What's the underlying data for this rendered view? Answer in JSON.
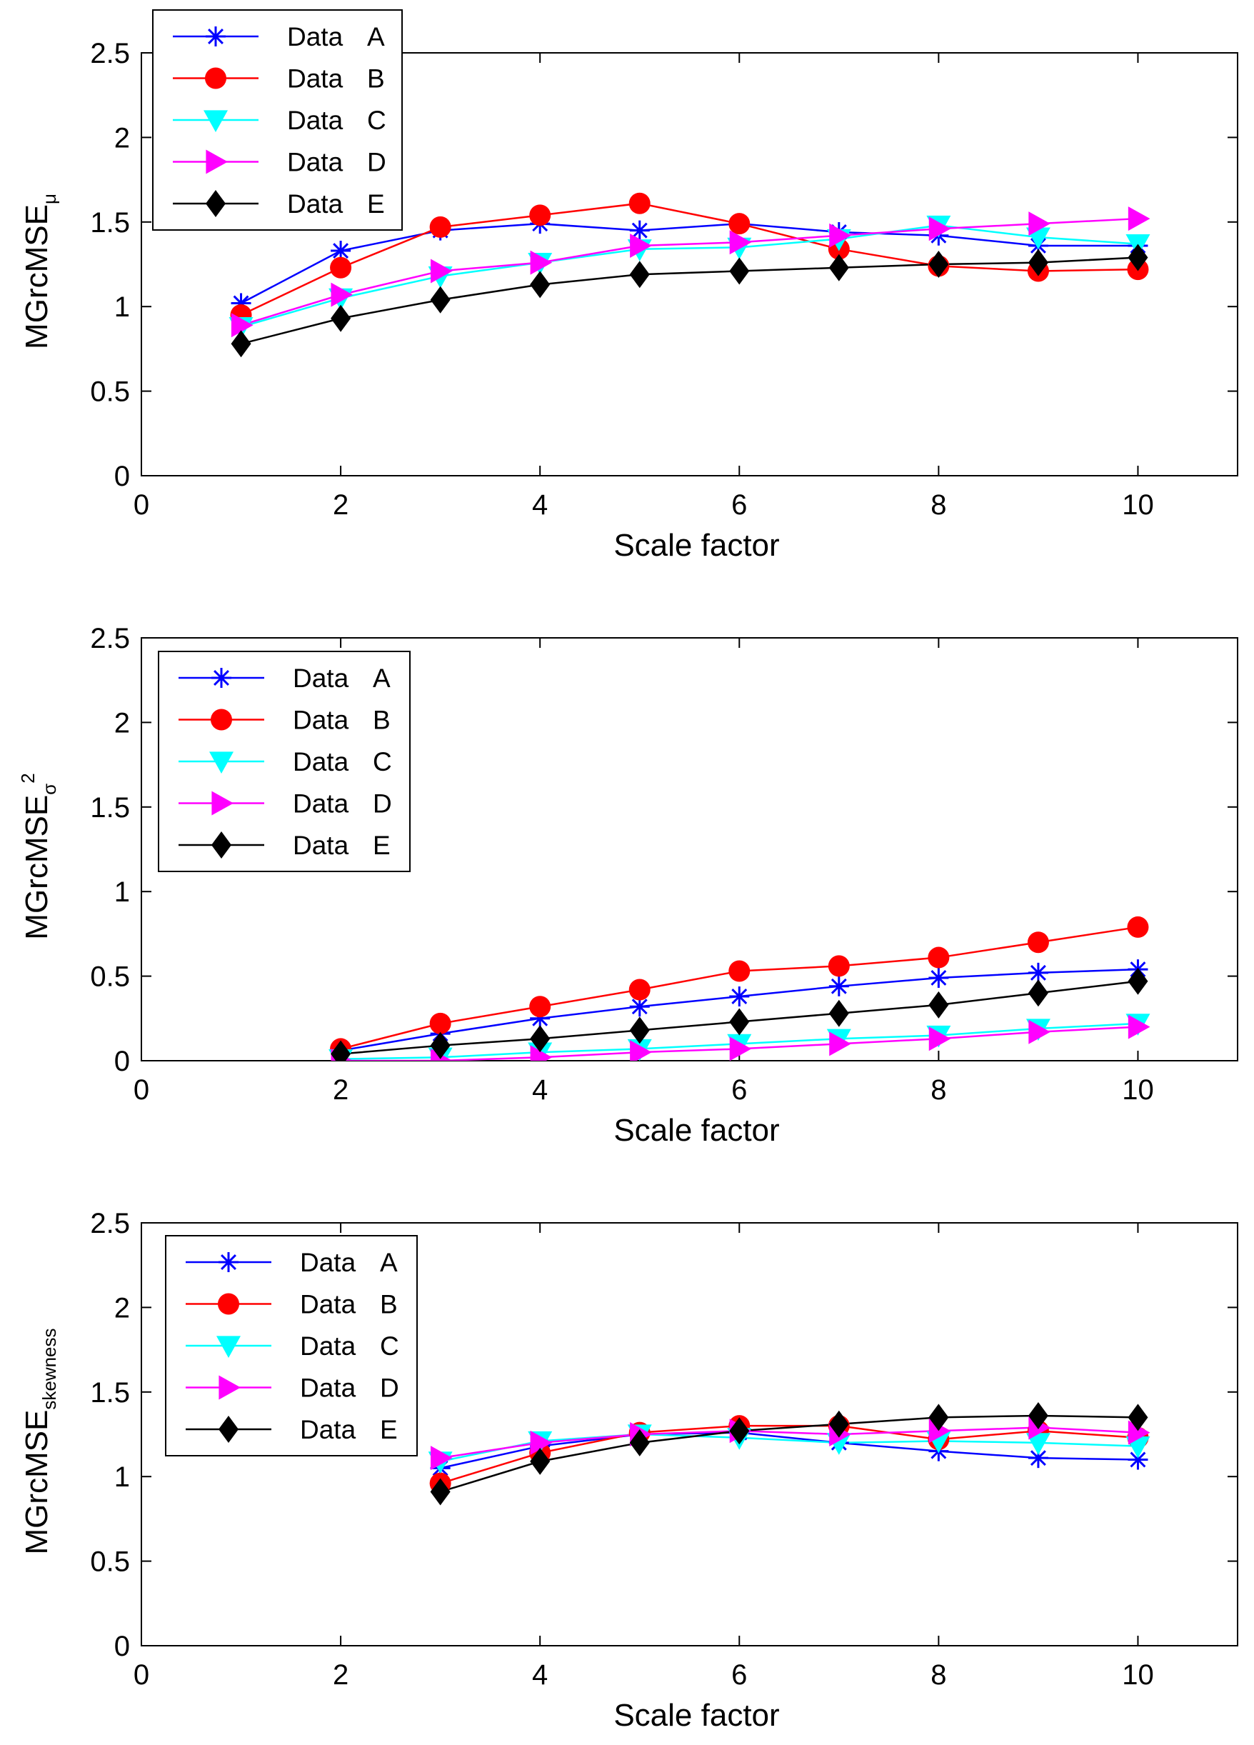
{
  "chart_data": [
    {
      "type": "line",
      "ylabel": "MGrcMSE",
      "ylabel_subscript": "μ",
      "ylabel_superscript": "",
      "xlabel": "Scale factor",
      "xlim": [
        0,
        11
      ],
      "ylim": [
        0,
        2.5
      ],
      "xticks": [
        "0",
        "2",
        "4",
        "6",
        "8",
        "10"
      ],
      "yticks": [
        "0",
        "0.5",
        "1",
        "1.5",
        "2",
        "2.5"
      ],
      "legend_position": "top-left",
      "series": [
        {
          "name": "Data",
          "letter": "A",
          "x": [
            1,
            2,
            3,
            4,
            5,
            6,
            7,
            8,
            9,
            10
          ],
          "values": [
            1.02,
            1.33,
            1.45,
            1.49,
            1.45,
            1.49,
            1.44,
            1.42,
            1.36,
            1.36
          ]
        },
        {
          "name": "Data",
          "letter": "B",
          "x": [
            1,
            2,
            3,
            4,
            5,
            6,
            7,
            8,
            9,
            10
          ],
          "values": [
            0.95,
            1.23,
            1.47,
            1.54,
            1.61,
            1.49,
            1.34,
            1.24,
            1.21,
            1.22
          ]
        },
        {
          "name": "Data",
          "letter": "C",
          "x": [
            1,
            2,
            3,
            4,
            5,
            6,
            7,
            8,
            9,
            10
          ],
          "values": [
            0.88,
            1.05,
            1.18,
            1.26,
            1.34,
            1.35,
            1.4,
            1.48,
            1.41,
            1.37
          ]
        },
        {
          "name": "Data",
          "letter": "D",
          "x": [
            1,
            2,
            3,
            4,
            5,
            6,
            7,
            8,
            9,
            10
          ],
          "values": [
            0.89,
            1.07,
            1.21,
            1.26,
            1.36,
            1.38,
            1.42,
            1.46,
            1.49,
            1.52
          ]
        },
        {
          "name": "Data",
          "letter": "E",
          "x": [
            1,
            2,
            3,
            4,
            5,
            6,
            7,
            8,
            9,
            10
          ],
          "values": [
            0.78,
            0.93,
            1.04,
            1.13,
            1.19,
            1.21,
            1.23,
            1.25,
            1.26,
            1.29
          ]
        }
      ]
    },
    {
      "type": "line",
      "ylabel": "MGrcMSE",
      "ylabel_subscript": "σ",
      "ylabel_superscript": "2",
      "xlabel": "Scale factor",
      "xlim": [
        0,
        11
      ],
      "ylim": [
        0,
        2.5
      ],
      "xticks": [
        "0",
        "2",
        "4",
        "6",
        "8",
        "10"
      ],
      "yticks": [
        "0",
        "0.5",
        "1",
        "1.5",
        "2",
        "2.5"
      ],
      "legend_position": "top-left",
      "series": [
        {
          "name": "Data",
          "letter": "A",
          "x": [
            2,
            3,
            4,
            5,
            6,
            7,
            8,
            9,
            10
          ],
          "values": [
            0.06,
            0.16,
            0.25,
            0.32,
            0.38,
            0.44,
            0.49,
            0.52,
            0.54
          ]
        },
        {
          "name": "Data",
          "letter": "B",
          "x": [
            2,
            3,
            4,
            5,
            6,
            7,
            8,
            9,
            10
          ],
          "values": [
            0.07,
            0.22,
            0.32,
            0.42,
            0.53,
            0.56,
            0.61,
            0.7,
            0.79
          ]
        },
        {
          "name": "Data",
          "letter": "C",
          "x": [
            2,
            3,
            4,
            5,
            6,
            7,
            8,
            9,
            10
          ],
          "values": [
            0.01,
            0.02,
            0.05,
            0.07,
            0.1,
            0.13,
            0.15,
            0.19,
            0.22
          ]
        },
        {
          "name": "Data",
          "letter": "D",
          "x": [
            2,
            3,
            4,
            5,
            6,
            7,
            8,
            9,
            10
          ],
          "values": [
            0.0,
            0.0,
            0.02,
            0.05,
            0.07,
            0.1,
            0.13,
            0.17,
            0.2
          ]
        },
        {
          "name": "Data",
          "letter": "E",
          "x": [
            2,
            3,
            4,
            5,
            6,
            7,
            8,
            9,
            10
          ],
          "values": [
            0.04,
            0.09,
            0.13,
            0.18,
            0.23,
            0.28,
            0.33,
            0.4,
            0.47
          ]
        }
      ]
    },
    {
      "type": "line",
      "ylabel": "MGrcMSE",
      "ylabel_subscript": "skewness",
      "ylabel_superscript": "",
      "xlabel": "Scale factor",
      "xlim": [
        0,
        11
      ],
      "ylim": [
        0,
        2.5
      ],
      "xticks": [
        "0",
        "2",
        "4",
        "6",
        "8",
        "10"
      ],
      "yticks": [
        "0",
        "0.5",
        "1",
        "1.5",
        "2",
        "2.5"
      ],
      "legend_position": "top-left",
      "series": [
        {
          "name": "Data",
          "letter": "A",
          "x": [
            3,
            4,
            5,
            6,
            7,
            8,
            9,
            10
          ],
          "values": [
            1.05,
            1.18,
            1.25,
            1.26,
            1.2,
            1.15,
            1.11,
            1.1
          ]
        },
        {
          "name": "Data",
          "letter": "B",
          "x": [
            3,
            4,
            5,
            6,
            7,
            8,
            9,
            10
          ],
          "values": [
            0.96,
            1.14,
            1.26,
            1.3,
            1.3,
            1.22,
            1.27,
            1.23
          ]
        },
        {
          "name": "Data",
          "letter": "C",
          "x": [
            3,
            4,
            5,
            6,
            7,
            8,
            9,
            10
          ],
          "values": [
            1.09,
            1.21,
            1.25,
            1.23,
            1.2,
            1.21,
            1.2,
            1.18
          ]
        },
        {
          "name": "Data",
          "letter": "D",
          "x": [
            3,
            4,
            5,
            6,
            7,
            8,
            9,
            10
          ],
          "values": [
            1.11,
            1.2,
            1.25,
            1.27,
            1.25,
            1.27,
            1.29,
            1.26
          ]
        },
        {
          "name": "Data",
          "letter": "E",
          "x": [
            3,
            4,
            5,
            6,
            7,
            8,
            9,
            10
          ],
          "values": [
            0.91,
            1.09,
            1.2,
            1.27,
            1.31,
            1.35,
            1.36,
            1.35
          ]
        }
      ]
    }
  ],
  "styles": {
    "A": {
      "color": "#0000ff",
      "marker": "asterisk"
    },
    "B": {
      "color": "#ff0000",
      "marker": "circle"
    },
    "C": {
      "color": "#00ffff",
      "marker": "triangle-down"
    },
    "D": {
      "color": "#ff00ff",
      "marker": "triangle-right"
    },
    "E": {
      "color": "#000000",
      "marker": "diamond"
    }
  }
}
